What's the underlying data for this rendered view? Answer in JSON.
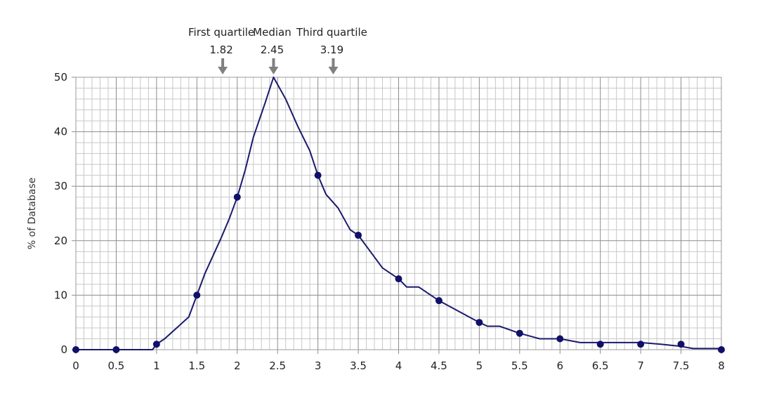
{
  "chart_data": {
    "type": "line",
    "title": "",
    "xlabel": "",
    "ylabel": "% of Database",
    "xlim": [
      0,
      8
    ],
    "ylim": [
      0,
      50
    ],
    "x_ticks": [
      "0",
      "0.5",
      "1",
      "1.5",
      "2",
      "2.5",
      "3",
      "3.5",
      "4",
      "4.5",
      "5",
      "5.5",
      "6",
      "6.5",
      "7",
      "7.5",
      "8"
    ],
    "y_ticks": [
      "0",
      "10",
      "20",
      "30",
      "40",
      "50"
    ],
    "grid": true,
    "minor_grid": true,
    "series": [
      {
        "line_color": "#1a1a6e",
        "marker_color": "#10106a",
        "markers": [
          {
            "x": 0,
            "y": 0
          },
          {
            "x": 0.5,
            "y": 0
          },
          {
            "x": 1,
            "y": 1
          },
          {
            "x": 1.5,
            "y": 10
          },
          {
            "x": 2,
            "y": 28
          },
          {
            "x": 3,
            "y": 32
          },
          {
            "x": 3.5,
            "y": 21
          },
          {
            "x": 4,
            "y": 13
          },
          {
            "x": 4.5,
            "y": 9
          },
          {
            "x": 5,
            "y": 5
          },
          {
            "x": 5.5,
            "y": 3
          },
          {
            "x": 6,
            "y": 2
          },
          {
            "x": 6.5,
            "y": 1
          },
          {
            "x": 7,
            "y": 1
          },
          {
            "x": 7.5,
            "y": 1
          },
          {
            "x": 8,
            "y": 0
          }
        ],
        "curve": [
          {
            "x": 0,
            "y": 0
          },
          {
            "x": 0.5,
            "y": 0
          },
          {
            "x": 0.95,
            "y": 0
          },
          {
            "x": 1,
            "y": 1
          },
          {
            "x": 1.1,
            "y": 2
          },
          {
            "x": 1.25,
            "y": 4
          },
          {
            "x": 1.4,
            "y": 6
          },
          {
            "x": 1.5,
            "y": 10
          },
          {
            "x": 1.6,
            "y": 14
          },
          {
            "x": 1.8,
            "y": 20.5
          },
          {
            "x": 1.9,
            "y": 24
          },
          {
            "x": 2,
            "y": 28
          },
          {
            "x": 2.1,
            "y": 33
          },
          {
            "x": 2.2,
            "y": 39
          },
          {
            "x": 2.35,
            "y": 45.5
          },
          {
            "x": 2.45,
            "y": 50
          },
          {
            "x": 2.6,
            "y": 46
          },
          {
            "x": 2.75,
            "y": 41
          },
          {
            "x": 2.9,
            "y": 36.5
          },
          {
            "x": 3,
            "y": 32
          },
          {
            "x": 3.1,
            "y": 28.5
          },
          {
            "x": 3.25,
            "y": 26
          },
          {
            "x": 3.4,
            "y": 22
          },
          {
            "x": 3.5,
            "y": 21
          },
          {
            "x": 3.65,
            "y": 18
          },
          {
            "x": 3.8,
            "y": 15
          },
          {
            "x": 4,
            "y": 13
          },
          {
            "x": 4.1,
            "y": 11.5
          },
          {
            "x": 4.25,
            "y": 11.5
          },
          {
            "x": 4.5,
            "y": 9
          },
          {
            "x": 4.75,
            "y": 7
          },
          {
            "x": 5,
            "y": 5
          },
          {
            "x": 5.1,
            "y": 4.3
          },
          {
            "x": 5.25,
            "y": 4.3
          },
          {
            "x": 5.5,
            "y": 3
          },
          {
            "x": 5.75,
            "y": 2
          },
          {
            "x": 6,
            "y": 2
          },
          {
            "x": 6.25,
            "y": 1.3
          },
          {
            "x": 6.5,
            "y": 1.3
          },
          {
            "x": 7,
            "y": 1.3
          },
          {
            "x": 7.25,
            "y": 1
          },
          {
            "x": 7.5,
            "y": 0.6
          },
          {
            "x": 7.65,
            "y": 0.2
          },
          {
            "x": 8,
            "y": 0.2
          }
        ]
      }
    ],
    "annotations": [
      {
        "label": "First quartile",
        "value_text": "1.82",
        "x": 1.82
      },
      {
        "label": "Median",
        "value_text": "2.45",
        "x": 2.45
      },
      {
        "label": "Third quartile",
        "value_text": "3.19",
        "x": 3.19
      }
    ],
    "colors": {
      "minor_grid": "#c8c8c8",
      "major_grid": "#8c8c8c",
      "arrow": "#808080",
      "frame": "#9a9a9a"
    }
  }
}
